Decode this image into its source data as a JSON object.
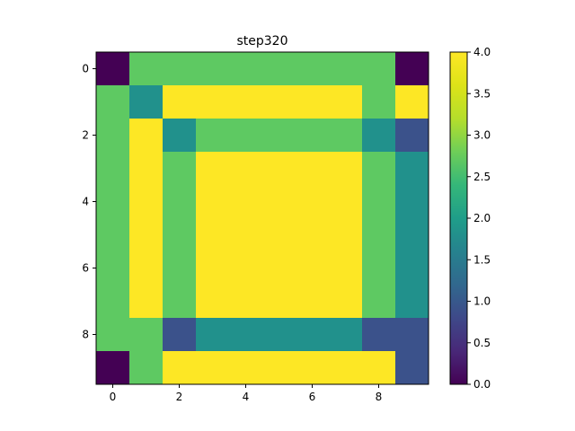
{
  "chart_data": {
    "type": "heatmap",
    "title": "step320",
    "xlabel": "",
    "ylabel": "",
    "rows": 10,
    "cols": 10,
    "values": [
      [
        0,
        3,
        3,
        3,
        3,
        3,
        3,
        3,
        3,
        0
      ],
      [
        3,
        2,
        4,
        4,
        4,
        4,
        4,
        4,
        3,
        4
      ],
      [
        3,
        4,
        2,
        3,
        3,
        3,
        3,
        3,
        2,
        1
      ],
      [
        3,
        4,
        3,
        4,
        4,
        4,
        4,
        4,
        3,
        2
      ],
      [
        3,
        4,
        3,
        4,
        4,
        4,
        4,
        4,
        3,
        2
      ],
      [
        3,
        4,
        3,
        4,
        4,
        4,
        4,
        4,
        3,
        2
      ],
      [
        3,
        4,
        3,
        4,
        4,
        4,
        4,
        4,
        3,
        2
      ],
      [
        3,
        4,
        3,
        4,
        4,
        4,
        4,
        4,
        3,
        2
      ],
      [
        3,
        3,
        1,
        2,
        2,
        2,
        2,
        2,
        1,
        1
      ],
      [
        0,
        3,
        4,
        4,
        4,
        4,
        4,
        4,
        4,
        1
      ]
    ],
    "x_ticks": [
      0,
      2,
      4,
      6,
      8
    ],
    "y_ticks": [
      0,
      2,
      4,
      6,
      8
    ],
    "colorbar": {
      "min": 0,
      "max": 4,
      "ticks": [
        "0.0",
        "0.5",
        "1.0",
        "1.5",
        "2.0",
        "2.5",
        "3.0",
        "3.5",
        "4.0"
      ]
    },
    "colormap": "viridis",
    "palette": {
      "0": "#440154",
      "1": "#3b528b",
      "2": "#21918c",
      "3": "#5ec962",
      "4": "#fde725"
    }
  }
}
